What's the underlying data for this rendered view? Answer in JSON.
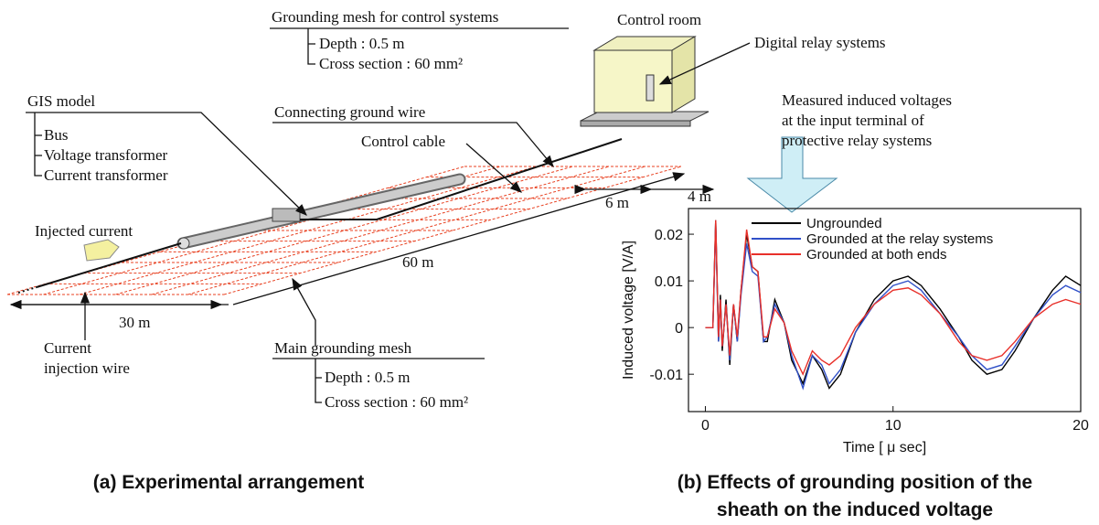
{
  "diagram": {
    "control_mesh": {
      "title": "Grounding mesh for control systems",
      "items": [
        "Depth : 0.5 m",
        "Cross section : 60 mm²"
      ]
    },
    "control_room": "Control room",
    "relay": "Digital relay systems",
    "gis": {
      "title": "GIS model",
      "items": [
        "Bus",
        "Voltage transformer",
        "Current transformer"
      ]
    },
    "connecting_wire": "Connecting ground wire",
    "control_cable": "Control cable",
    "dim_6": "6 m",
    "dim_4": "4 m",
    "dim_60": "60 m",
    "dim_30": "30 m",
    "injected": "Injected current",
    "injection_wire": [
      "Current",
      "injection wire"
    ],
    "main_mesh": {
      "title": "Main grounding mesh",
      "items": [
        "Depth : 0.5 m",
        "Cross section : 60 mm²"
      ]
    },
    "measured": [
      "Measured induced voltages",
      "at the input terminal of",
      "protective relay systems"
    ],
    "caption_a": "(a) Experimental arrangement",
    "caption_b": [
      "(b) Effects of grounding position of the",
      "sheath on the induced voltage"
    ]
  },
  "chart_data": {
    "type": "line",
    "x_label": "Time [ μ sec]",
    "y_label": "Induced voltage  [V/A]",
    "xlim": [
      -0.9,
      20
    ],
    "ylim": [
      -0.018,
      0.0255
    ],
    "xticks": [
      0,
      10,
      20
    ],
    "yticks": [
      0.02,
      0.01,
      0,
      -0.01
    ],
    "x": [
      0,
      0.4,
      0.55,
      0.7,
      0.8,
      0.9,
      1.1,
      1.3,
      1.5,
      1.7,
      1.9,
      2.2,
      2.5,
      2.8,
      3.1,
      3.3,
      3.7,
      4.2,
      4.6,
      5.2,
      5.7,
      6.2,
      6.6,
      7.2,
      8,
      9,
      10,
      10.8,
      11.5,
      12.5,
      13.5,
      14.2,
      15,
      15.8,
      16.5,
      17.5,
      18.5,
      19.2,
      20
    ],
    "series": [
      {
        "name": "Ungrounded",
        "color": "#000000",
        "values": [
          0,
          0,
          0.023,
          -0.003,
          0.007,
          -0.005,
          0.006,
          -0.008,
          0.005,
          -0.003,
          0.008,
          0.02,
          0.013,
          0.012,
          -0.003,
          -0.003,
          0.006,
          0.001,
          -0.007,
          -0.012,
          -0.006,
          -0.009,
          -0.013,
          -0.01,
          -0.001,
          0.006,
          0.01,
          0.011,
          0.009,
          0.004,
          -0.002,
          -0.007,
          -0.01,
          -0.009,
          -0.005,
          0.002,
          0.008,
          0.011,
          0.009
        ]
      },
      {
        "name": "Grounded at the relay systems",
        "color": "#3050c8",
        "values": [
          0,
          0,
          0.022,
          -0.003,
          0.006,
          -0.004,
          0.005,
          -0.007,
          0.005,
          -0.003,
          0.007,
          0.018,
          0.012,
          0.011,
          -0.003,
          -0.002,
          0.005,
          0.001,
          -0.006,
          -0.013,
          -0.006,
          -0.008,
          -0.012,
          -0.009,
          -0.001,
          0.005,
          0.009,
          0.01,
          0.008,
          0.003,
          -0.002,
          -0.006,
          -0.009,
          -0.008,
          -0.004,
          0.002,
          0.007,
          0.009,
          0.0075
        ]
      },
      {
        "name": "Grounded at both ends",
        "color": "#e8302a",
        "values": [
          0,
          0,
          0.023,
          -0.002,
          0.006,
          -0.004,
          0.005,
          -0.006,
          0.005,
          -0.002,
          0.008,
          0.021,
          0.013,
          0.012,
          -0.002,
          -0.002,
          0.004,
          0.001,
          -0.005,
          -0.01,
          -0.005,
          -0.007,
          -0.008,
          -0.006,
          0.0,
          0.005,
          0.008,
          0.0085,
          0.007,
          0.003,
          -0.003,
          -0.006,
          -0.007,
          -0.006,
          -0.003,
          0.002,
          0.005,
          0.006,
          0.005
        ]
      }
    ]
  }
}
